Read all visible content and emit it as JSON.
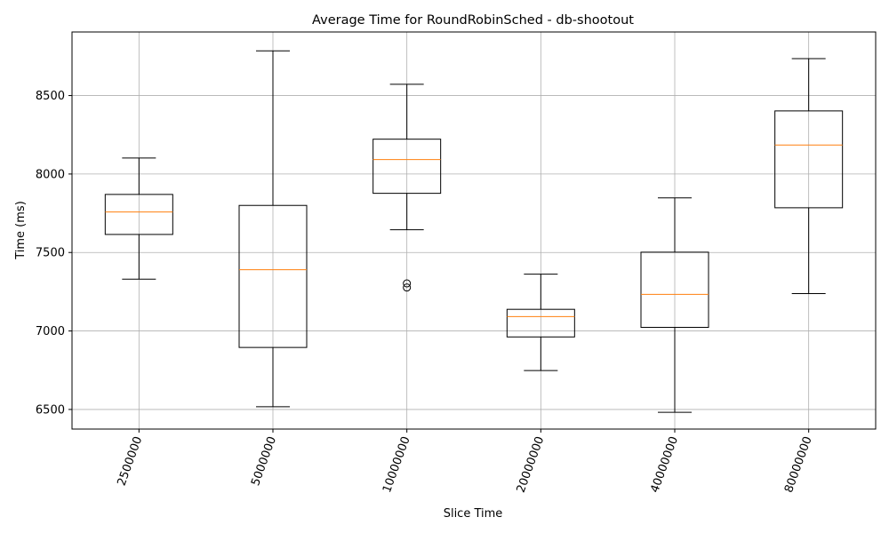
{
  "chart_data": {
    "type": "box",
    "title": "Average Time for RoundRobinSched - db-shootout",
    "xlabel": "Slice Time",
    "ylabel": "Time (ms)",
    "ylim": [
      6375,
      8905
    ],
    "yticks": [
      6500,
      7000,
      7500,
      8000,
      8500
    ],
    "grid": true,
    "xtick_rotation": 70,
    "colors": {
      "box": "#000000",
      "median": "#ff7f0e",
      "grid": "#b0b0b0"
    },
    "categories": [
      "2500000",
      "5000000",
      "10000000",
      "20000000",
      "40000000",
      "80000000"
    ],
    "boxes": [
      {
        "whisker_low": 7330,
        "q1": 7615,
        "median": 7758,
        "q3": 7870,
        "whisker_high": 8102,
        "outliers": []
      },
      {
        "whisker_low": 6517,
        "q1": 6895,
        "median": 7390,
        "q3": 7800,
        "whisker_high": 8785,
        "outliers": []
      },
      {
        "whisker_low": 7645,
        "q1": 7877,
        "median": 8092,
        "q3": 8222,
        "whisker_high": 8572,
        "outliers": [
          7277,
          7303
        ]
      },
      {
        "whisker_low": 6748,
        "q1": 6962,
        "median": 7092,
        "q3": 7138,
        "whisker_high": 7362,
        "outliers": []
      },
      {
        "whisker_low": 6482,
        "q1": 7023,
        "median": 7233,
        "q3": 7502,
        "whisker_high": 7848,
        "outliers": []
      },
      {
        "whisker_low": 7238,
        "q1": 7785,
        "median": 8185,
        "q3": 8402,
        "whisker_high": 8735,
        "outliers": []
      }
    ]
  }
}
